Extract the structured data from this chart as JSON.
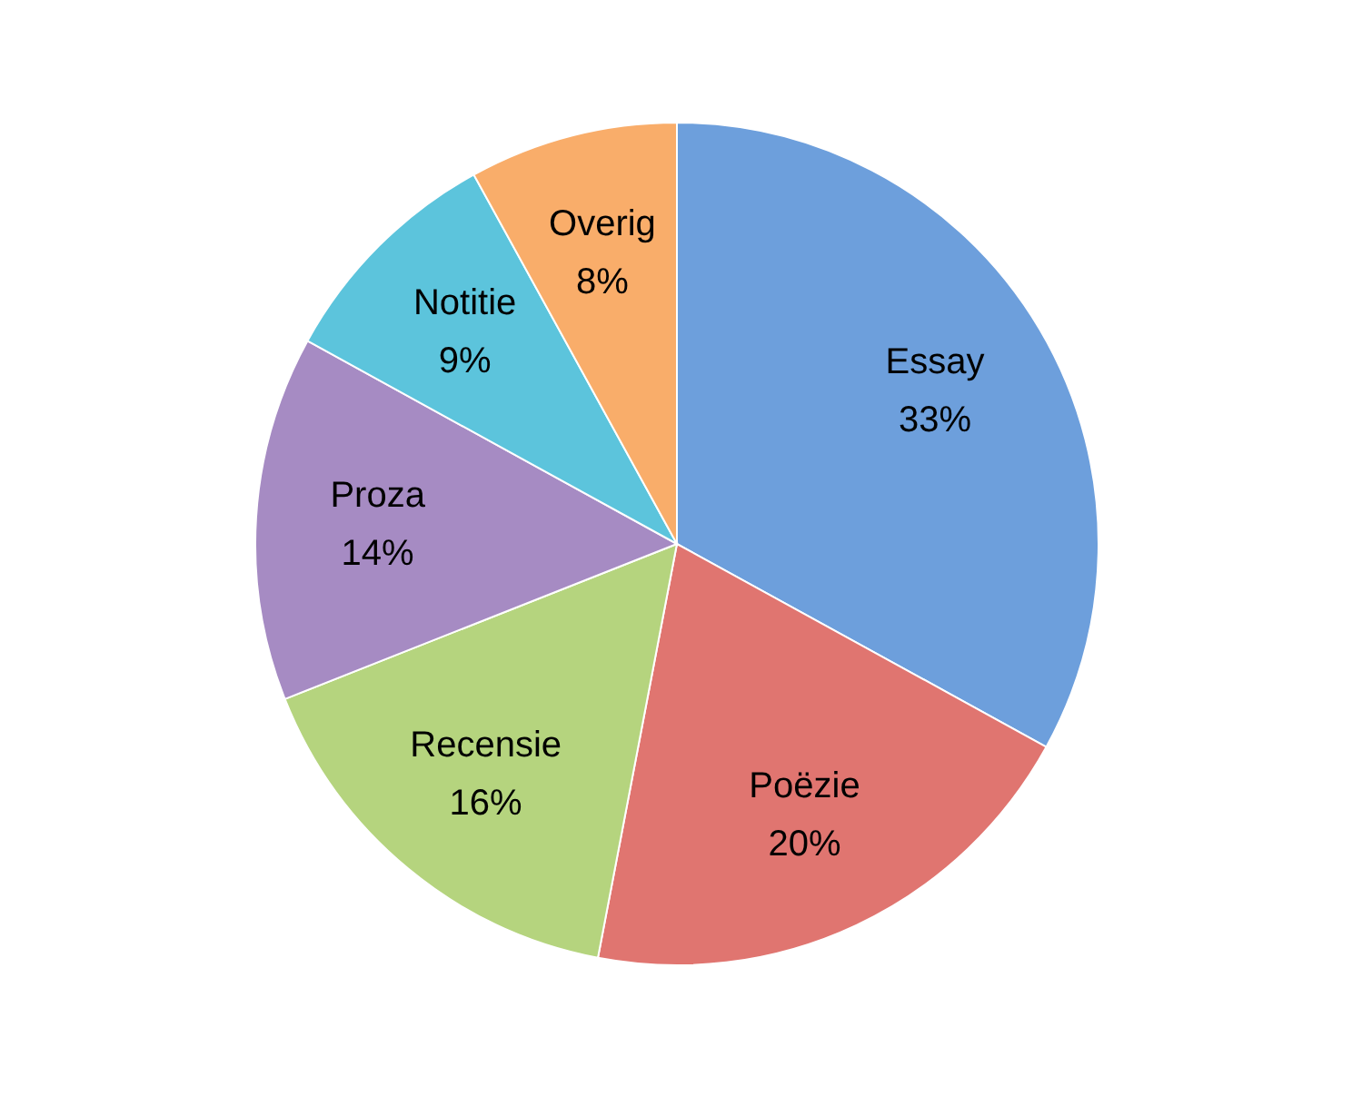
{
  "chart_data": {
    "type": "pie",
    "categories": [
      "Essay",
      "Poëzie",
      "Recensie",
      "Proza",
      "Notitie",
      "Overig"
    ],
    "values": [
      33,
      20,
      16,
      14,
      9,
      8
    ],
    "value_labels": [
      "33%",
      "20%",
      "16%",
      "14%",
      "9%",
      "8%"
    ],
    "colors": [
      "#6d9fdc",
      "#e07570",
      "#b5d47e",
      "#a68bc3",
      "#5cc4dc",
      "#f9ad6a"
    ],
    "legend": false
  }
}
